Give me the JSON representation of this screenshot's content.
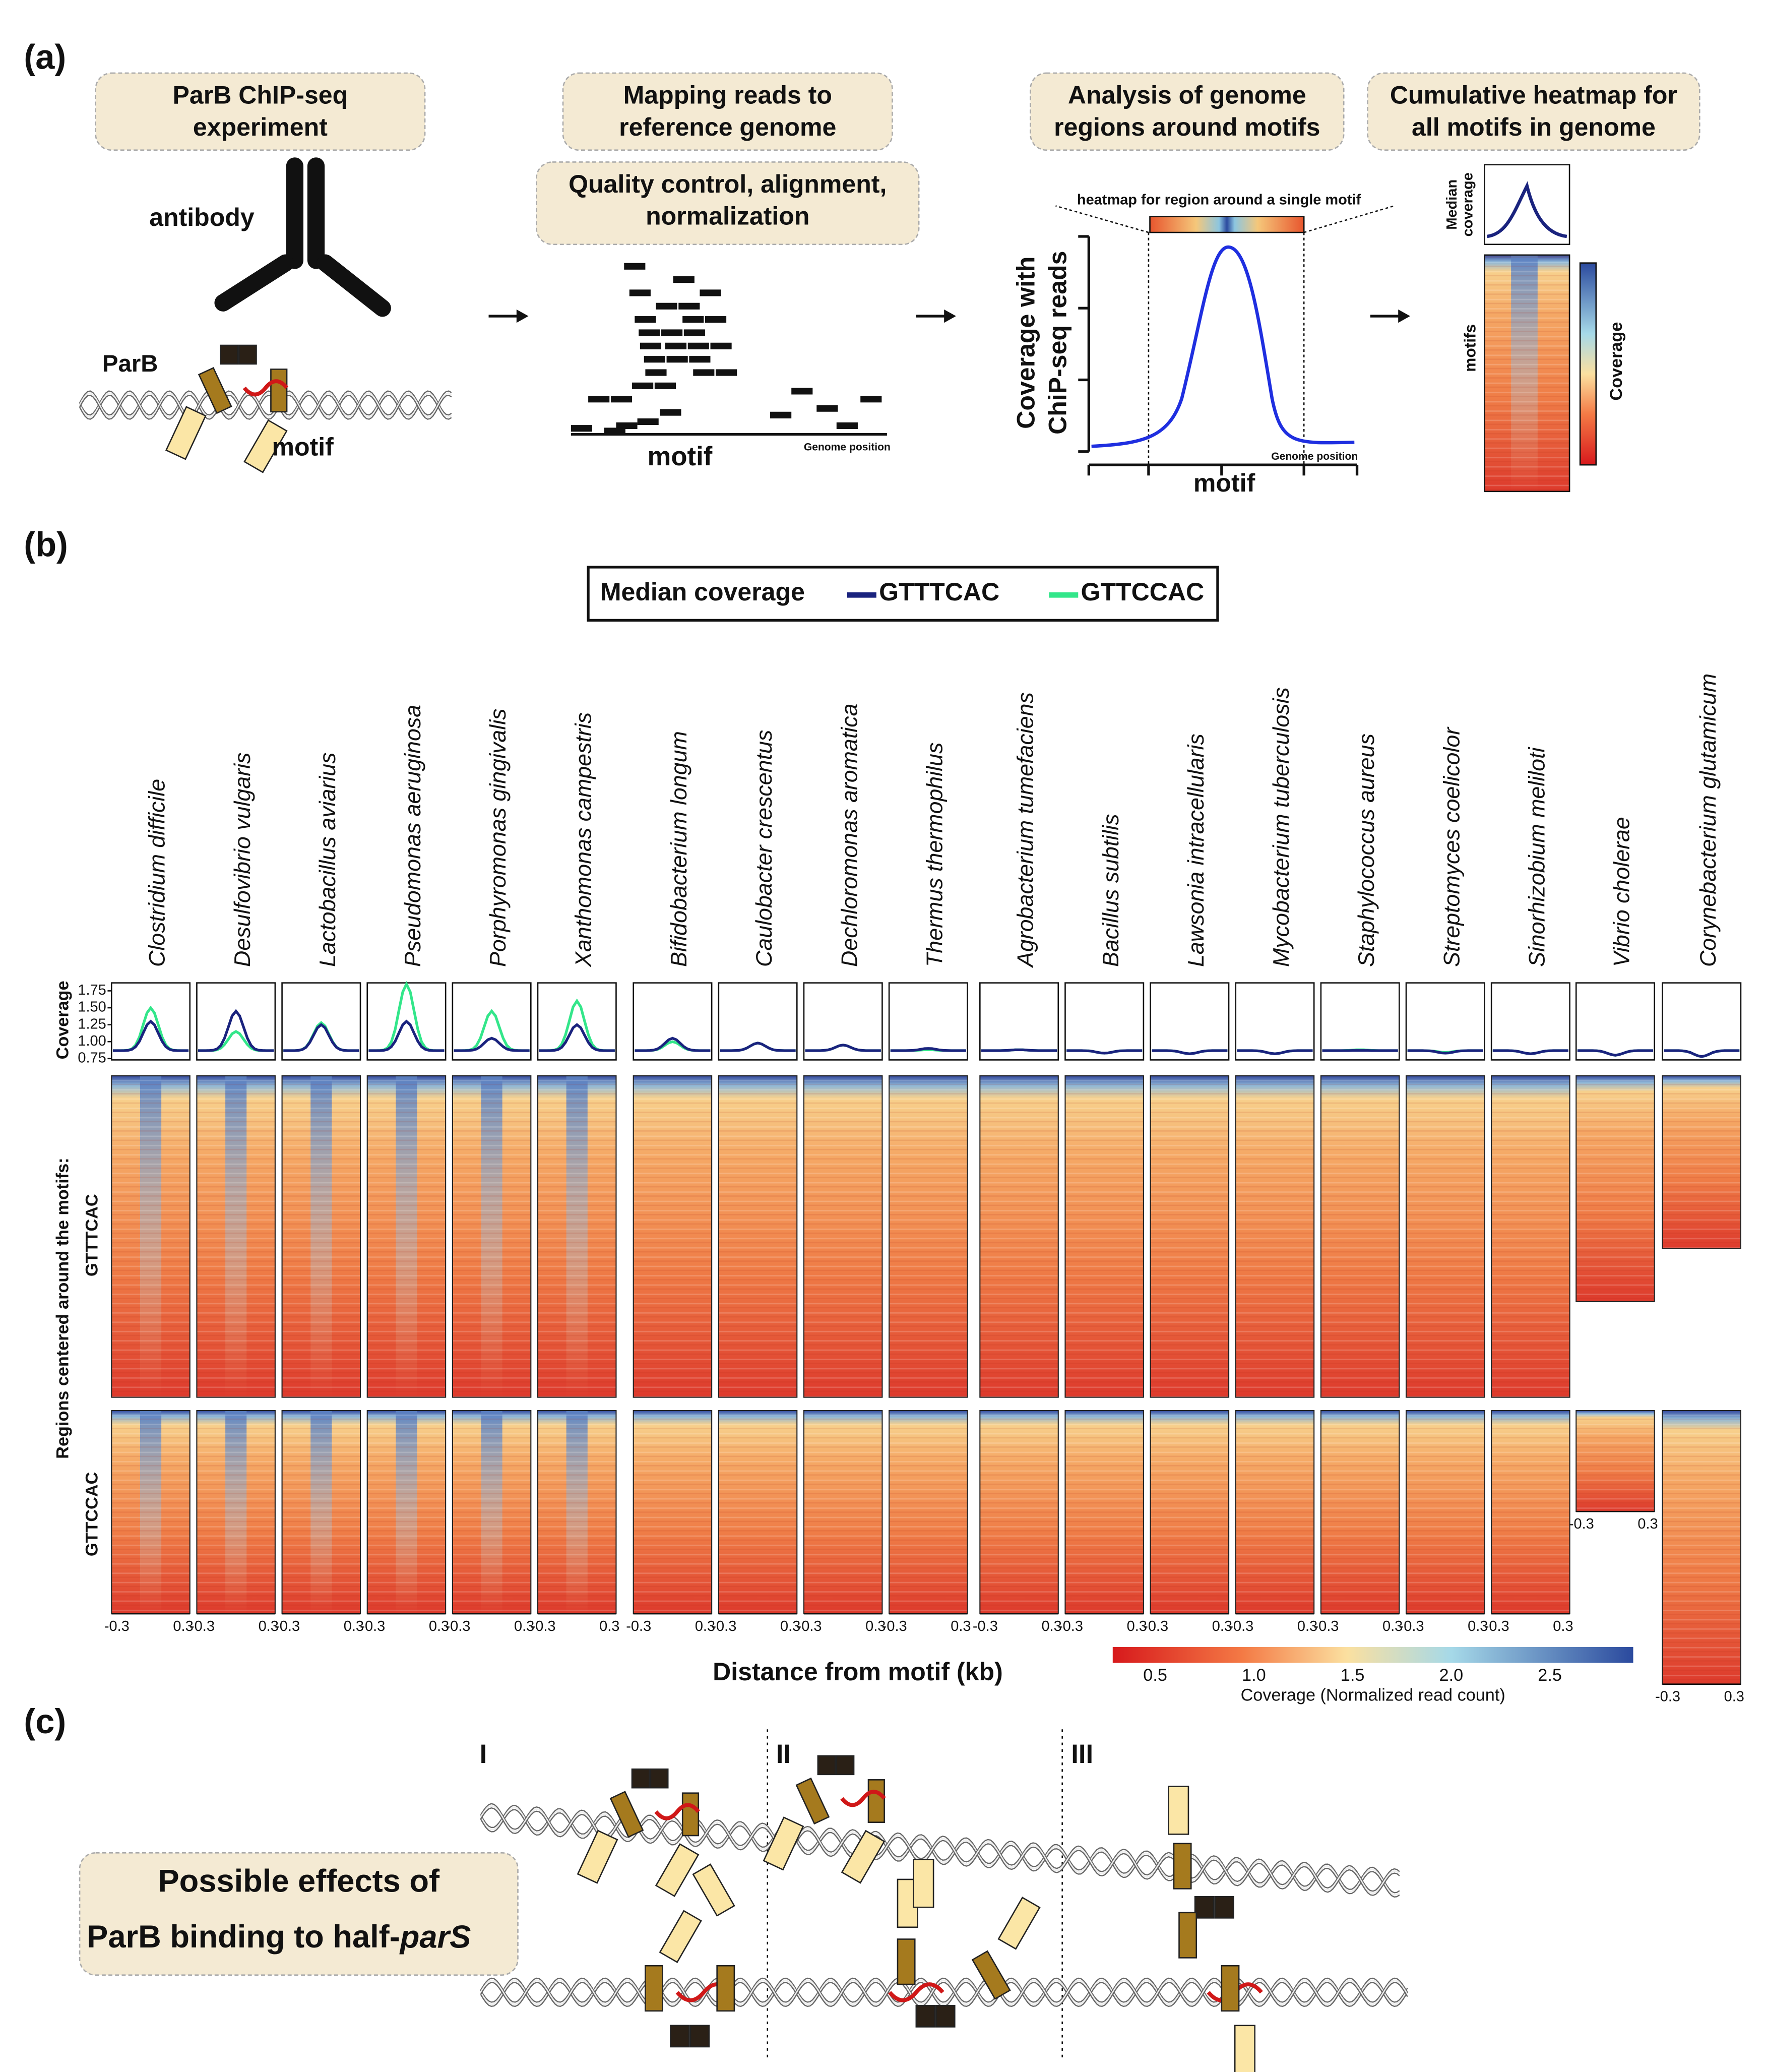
{
  "panel_a": {
    "label": "(a)",
    "boxes": [
      {
        "lines": [
          "ParB ChIP-seq",
          "experiment"
        ]
      },
      {
        "lines": [
          "Mapping reads to",
          "reference genome"
        ]
      },
      {
        "lines": [
          "Quality control, alignment,",
          "normalization"
        ]
      },
      {
        "lines": [
          "Analysis of genome",
          "regions around motifs"
        ]
      },
      {
        "lines": [
          "Cumulative heatmap for",
          "all motifs in genome"
        ]
      }
    ],
    "antibody": "antibody",
    "parb": "ParB",
    "motif": "motif",
    "reads_motif": "motif",
    "reads_axis": "Genome position",
    "heatmap_note": "heatmap for region around a single motif",
    "coverage_ylabel": [
      "Coverage with",
      "ChiP-seq reads"
    ],
    "coverage_motif": "motif",
    "coverage_axis": "Genome position",
    "median_label": [
      "Median",
      "coverage"
    ],
    "motifs_label": "motifs",
    "colorbar_label": "Coverage"
  },
  "panel_b": {
    "label": "(b)",
    "legend_title": "Median coverage",
    "legend": [
      {
        "name": "GTTTCAC",
        "color": "#1a237e"
      },
      {
        "name": "GTTCCAC",
        "color": "#33e68a"
      }
    ],
    "coverage_label": "Coverage",
    "ylim": [
      0.75,
      1.75
    ],
    "yticks": [
      1.75,
      {
        "value": 1.5,
        "label": "1.50"
      },
      1.25,
      {
        "value": 1,
        "label": "1.00"
      },
      0.75
    ],
    "species": [
      {
        "name": "Clostridium difficile",
        "peaks": [
          1.3,
          1.5
        ]
      },
      {
        "name": "Desulfovibrio vulgaris",
        "peaks": [
          1.45,
          1.15
        ]
      },
      {
        "name": "Lactobacillus aviarius",
        "peaks": [
          1.25,
          1.28
        ]
      },
      {
        "name": "Pseudomonas aeruginosa",
        "peaks": [
          1.3,
          1.85
        ]
      },
      {
        "name": "Porphyromonas gingivalis",
        "peaks": [
          1.05,
          1.45
        ]
      },
      {
        "name": "Xanthomonas campestris",
        "peaks": [
          1.25,
          1.6
        ]
      },
      {
        "name": "Bifidobacterium longum",
        "peaks": [
          1.05,
          1.0
        ]
      },
      {
        "name": "Caulobacter crescentus",
        "peaks": [
          0.98,
          0.98
        ]
      },
      {
        "name": "Dechloromonas aromatica",
        "peaks": [
          0.95,
          0.95
        ]
      },
      {
        "name": "Thermus thermophilus",
        "peaks": [
          0.9,
          0.88
        ]
      },
      {
        "name": "Agrobacterium tumefaciens",
        "peaks": [
          0.88,
          0.88
        ]
      },
      {
        "name": "Bacillus subtilis",
        "peaks": [
          0.83,
          0.83
        ]
      },
      {
        "name": "Lawsonia intracellularis",
        "peaks": [
          0.82,
          0.82
        ]
      },
      {
        "name": "Mycobacterium tuberculosis",
        "peaks": [
          0.82,
          0.82
        ]
      },
      {
        "name": "Staphylococcus aureus",
        "peaks": [
          0.87,
          0.88
        ]
      },
      {
        "name": "Streptomyces coelicolor",
        "peaks": [
          0.83,
          0.84
        ]
      },
      {
        "name": "Sinorhizobium meliloti",
        "peaks": [
          0.82,
          0.82
        ]
      },
      {
        "name": "Vibrio cholerae",
        "peaks": [
          0.8,
          0.8
        ]
      },
      {
        "name": "Corynebacterium glutamicum",
        "peaks": [
          0.78,
          0.78
        ]
      }
    ],
    "rows_label": "Regions centered around the motifs:",
    "row_names": [
      "GTTTCAC",
      "GTTCCAC"
    ],
    "x_ticks": [
      "-0.3",
      "0.3"
    ],
    "x_label": "Distance from motif (kb)",
    "colorbar_ticks": [
      "0.5",
      "1.0",
      "1.5",
      "2.0",
      "2.5"
    ],
    "colorbar_label": "Coverage (Normalized read count)"
  },
  "panel_c": {
    "label": "(c)",
    "cases": [
      "I",
      "II",
      "III"
    ],
    "box_lines": [
      "Possible effects of",
      "ParB binding to half-"
    ],
    "box_italic": "parS"
  }
}
